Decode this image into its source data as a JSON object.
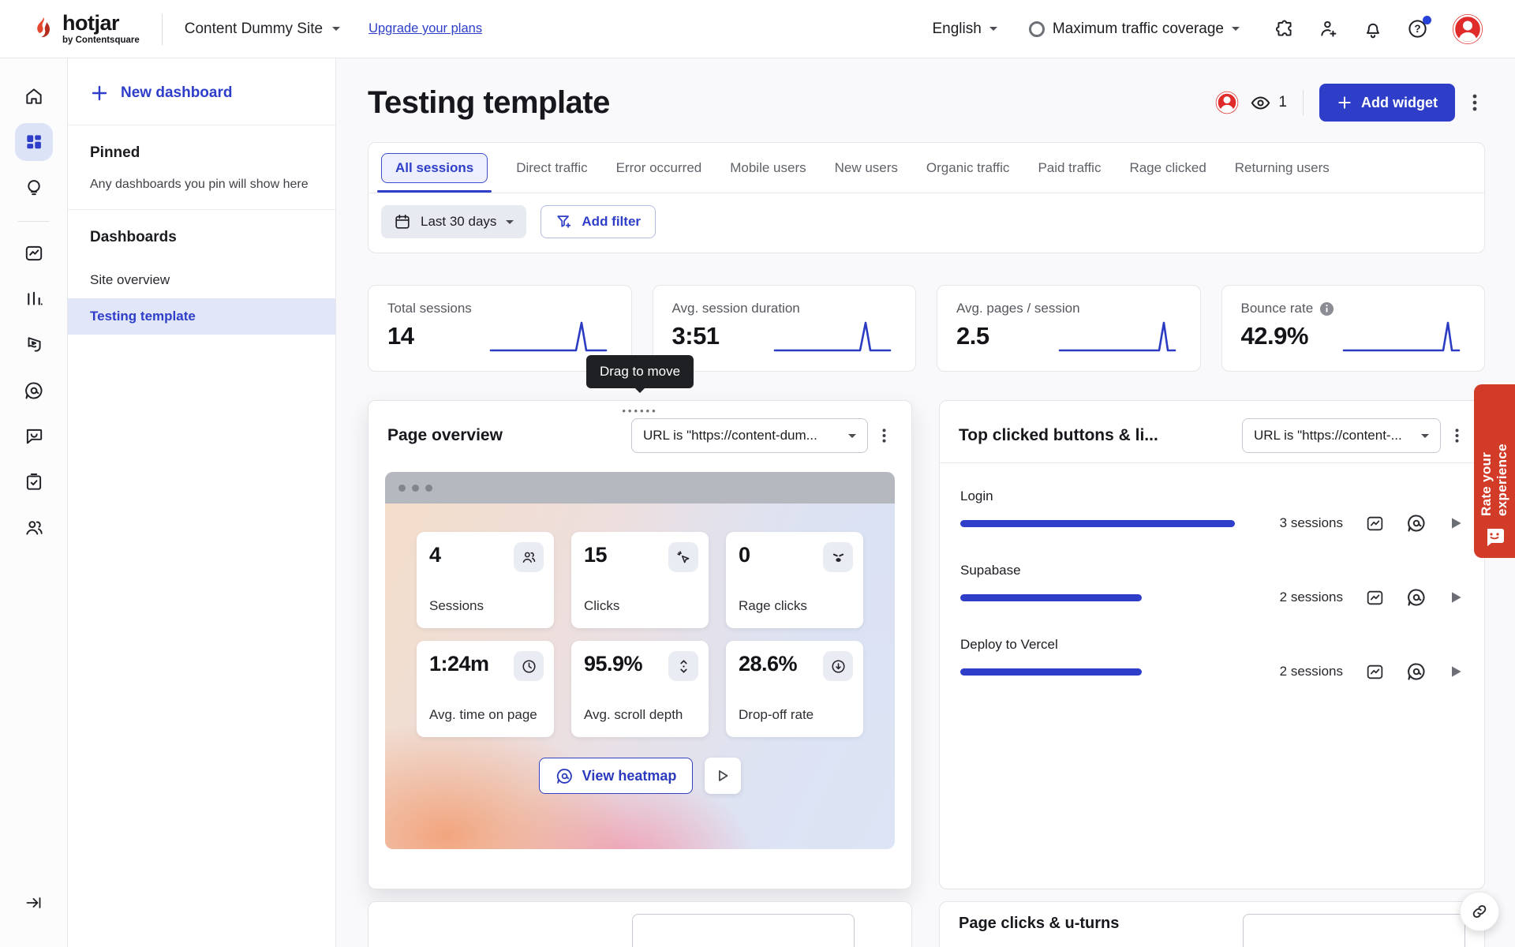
{
  "colors": {
    "accent_blue": "#2e3ec9",
    "brand_red": "#e5482e",
    "rate_tab_red": "#d23b27",
    "avatar_red": "#e02b2b",
    "sparkline_blue": "#2c3cc2"
  },
  "header": {
    "brand": "hotjar",
    "brand_sub": "by Contentsquare",
    "site_selector": "Content Dummy Site",
    "upgrade_link": "Upgrade your plans",
    "language": "English",
    "traffic_coverage": "Maximum traffic coverage",
    "icons": [
      "puzzle-icon",
      "user-add-icon",
      "bell-icon",
      "help-icon",
      "avatar"
    ]
  },
  "rail_icons": [
    "home-icon",
    "dashboards-grid-icon",
    "highlights-bulb-icon",
    "trends-chart-icon",
    "funnels-bars-icon",
    "journeys-flag-icon",
    "heatmaps-icon",
    "feedback-bubble-icon",
    "surveys-clipboard-icon",
    "interviews-users-icon",
    "collapse-icon"
  ],
  "nav_panel": {
    "new_dashboard": "New dashboard",
    "pinned_title": "Pinned",
    "pinned_empty": "Any dashboards you pin will show here",
    "dashboards_title": "Dashboards",
    "items": [
      {
        "label": "Site overview",
        "active": false
      },
      {
        "label": "Testing template",
        "active": true
      }
    ]
  },
  "main": {
    "title": "Testing template",
    "viewers_count": "1",
    "add_widget": "Add widget",
    "tabs": [
      {
        "label": "All sessions",
        "active": true
      },
      {
        "label": "Direct traffic"
      },
      {
        "label": "Error occurred"
      },
      {
        "label": "Mobile users"
      },
      {
        "label": "New users"
      },
      {
        "label": "Organic traffic"
      },
      {
        "label": "Paid traffic"
      },
      {
        "label": "Rage clicked"
      },
      {
        "label": "Returning users"
      }
    ],
    "filters": {
      "date_range": "Last 30 days",
      "add_filter": "Add filter"
    },
    "stats": [
      {
        "label": "Total sessions",
        "value": "14"
      },
      {
        "label": "Avg. session duration",
        "value": "3:51"
      },
      {
        "label": "Avg. pages / session",
        "value": "2.5"
      },
      {
        "label": "Bounce rate",
        "value": "42.9%",
        "info_icon": "info-icon"
      }
    ],
    "drag_tooltip": "Drag to move",
    "page_overview": {
      "title": "Page overview",
      "url_filter": "URL is \"https://content-dum...",
      "tiles": [
        {
          "value": "4",
          "label": "Sessions",
          "icon": "users-icon"
        },
        {
          "value": "15",
          "label": "Clicks",
          "icon": "cursor-click-icon"
        },
        {
          "value": "0",
          "label": "Rage clicks",
          "icon": "rage-face-icon"
        },
        {
          "value": "1:24m",
          "label": "Avg. time on page",
          "icon": "clock-icon"
        },
        {
          "value": "95.9%",
          "label": "Avg. scroll depth",
          "icon": "scroll-depth-icon"
        },
        {
          "value": "28.6%",
          "label": "Drop-off rate",
          "icon": "drop-off-icon"
        }
      ],
      "view_heatmap": "View heatmap"
    },
    "top_clicked": {
      "title": "Top clicked buttons & li...",
      "url_filter": "URL is \"https://content-...",
      "rows": [
        {
          "label": "Login",
          "sessions": "3 sessions",
          "bar_pct": 100
        },
        {
          "label": "Supabase",
          "sessions": "2 sessions",
          "bar_pct": 66
        },
        {
          "label": "Deploy to Vercel",
          "sessions": "2 sessions",
          "bar_pct": 66
        }
      ],
      "row_icons": [
        "trends-icon",
        "heatmap-icon",
        "play-icon"
      ]
    },
    "bottom_right_title": "Page clicks & u-turns"
  },
  "rate_tab_label": "Rate your experience"
}
